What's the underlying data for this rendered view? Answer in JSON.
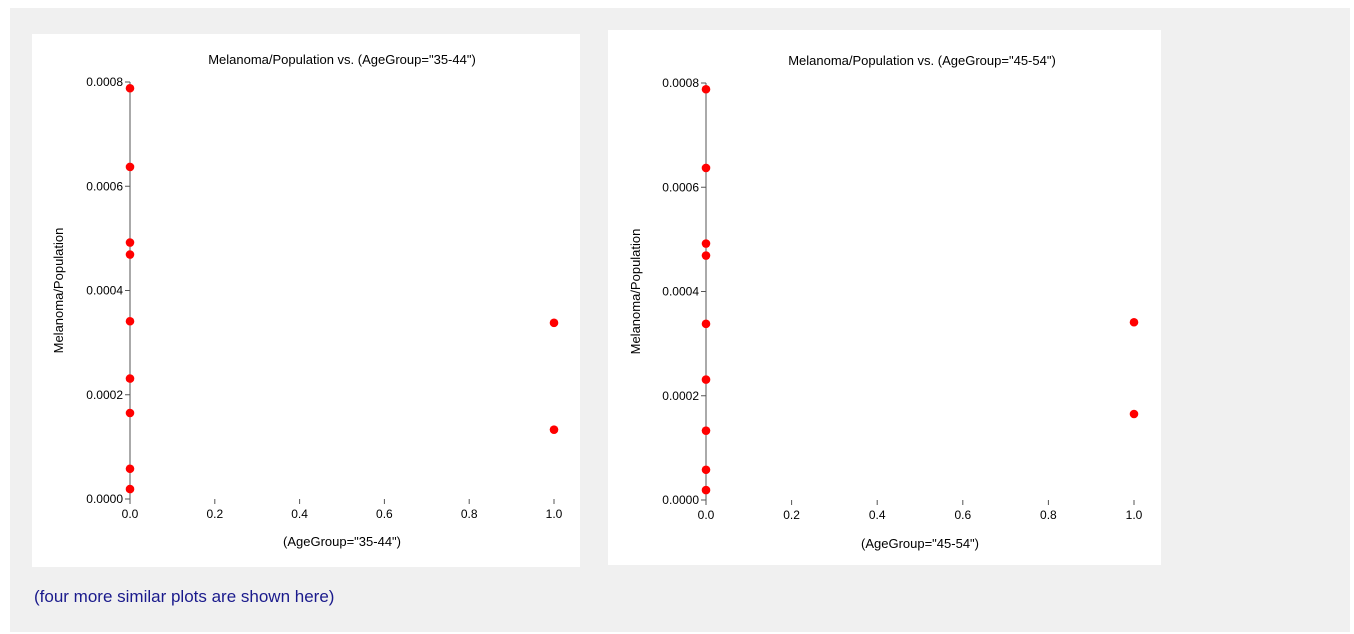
{
  "caption": "(four more similar plots are shown here)",
  "colors": {
    "point": "#ff0000",
    "axis": "#555555",
    "background": "#f0f0f0",
    "panel": "#ffffff"
  },
  "chart_data": [
    {
      "type": "scatter",
      "title": "Melanoma/Population vs. (AgeGroup=\"35-44\")",
      "xlabel": "(AgeGroup=\"35-44\")",
      "ylabel": "Melanoma/Population",
      "xlim": [
        0,
        1
      ],
      "ylim": [
        0,
        0.0008
      ],
      "xticks": [
        "0.0",
        "0.2",
        "0.4",
        "0.6",
        "0.8",
        "1.0"
      ],
      "yticks": [
        "0.0000",
        "0.0002",
        "0.0004",
        "0.0006",
        "0.0008"
      ],
      "grid": false,
      "points": [
        {
          "x": 0,
          "y": 0.000788
        },
        {
          "x": 0,
          "y": 0.000637
        },
        {
          "x": 0,
          "y": 0.000492
        },
        {
          "x": 0,
          "y": 0.000469
        },
        {
          "x": 0,
          "y": 0.000341
        },
        {
          "x": 0,
          "y": 0.000231
        },
        {
          "x": 0,
          "y": 0.000165
        },
        {
          "x": 0,
          "y": 5.8e-05
        },
        {
          "x": 0,
          "y": 1.9e-05
        },
        {
          "x": 1,
          "y": 0.000338
        },
        {
          "x": 1,
          "y": 0.000133
        }
      ]
    },
    {
      "type": "scatter",
      "title": "Melanoma/Population vs. (AgeGroup=\"45-54\")",
      "xlabel": "(AgeGroup=\"45-54\")",
      "ylabel": "Melanoma/Population",
      "xlim": [
        0,
        1
      ],
      "ylim": [
        0,
        0.0008
      ],
      "xticks": [
        "0.0",
        "0.2",
        "0.4",
        "0.6",
        "0.8",
        "1.0"
      ],
      "yticks": [
        "0.0000",
        "0.0002",
        "0.0004",
        "0.0006",
        "0.0008"
      ],
      "grid": false,
      "points": [
        {
          "x": 0,
          "y": 0.000788
        },
        {
          "x": 0,
          "y": 0.000637
        },
        {
          "x": 0,
          "y": 0.000492
        },
        {
          "x": 0,
          "y": 0.000469
        },
        {
          "x": 0,
          "y": 0.000338
        },
        {
          "x": 0,
          "y": 0.000231
        },
        {
          "x": 0,
          "y": 0.000133
        },
        {
          "x": 0,
          "y": 5.8e-05
        },
        {
          "x": 0,
          "y": 1.9e-05
        },
        {
          "x": 1,
          "y": 0.000341
        },
        {
          "x": 1,
          "y": 0.000165
        }
      ]
    }
  ]
}
